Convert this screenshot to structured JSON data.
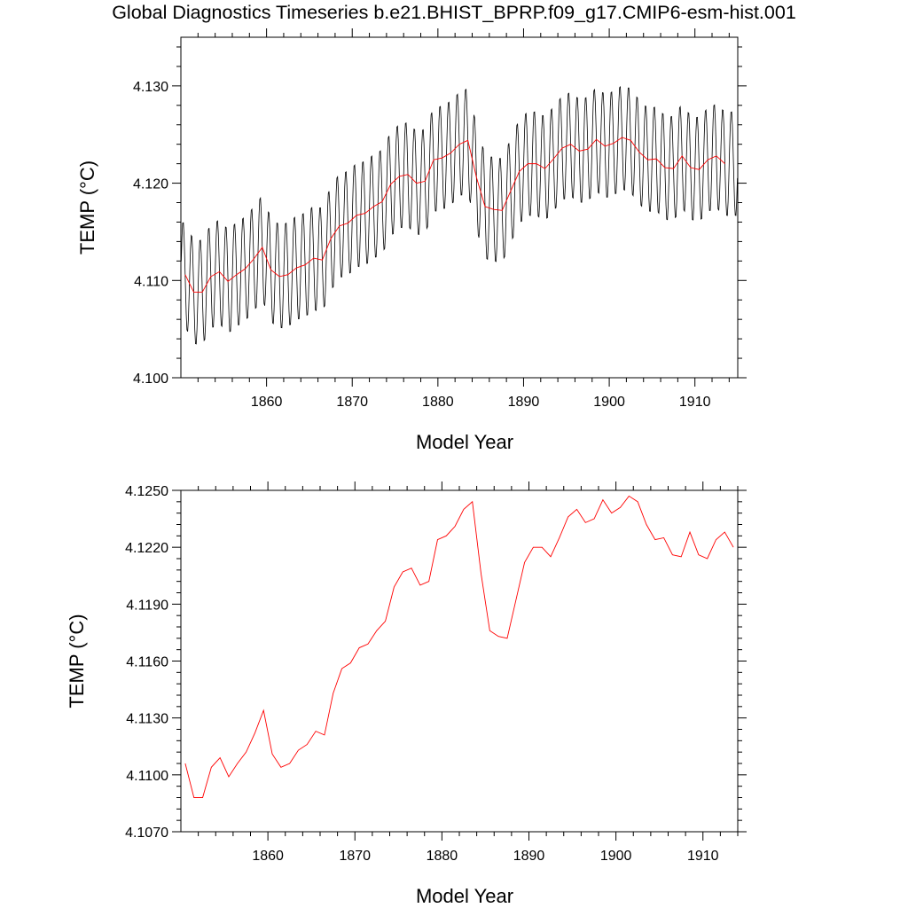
{
  "title": "Global Diagnostics Timeseries b.e21.BHIST_BPRP.f09_g17.CMIP6-esm-hist.001",
  "colors": {
    "monthly": "#000000",
    "annual": "#ff0000"
  },
  "chart_data": [
    {
      "type": "line",
      "xlabel": "Model Year",
      "ylabel": "TEMP (°C)",
      "xlim": [
        1850,
        1915
      ],
      "ylim": [
        4.1,
        4.135
      ],
      "x_ticks": [
        1860,
        1870,
        1880,
        1890,
        1900,
        1910
      ],
      "y_ticks": [
        4.1,
        4.11,
        4.12,
        4.13
      ],
      "y_tick_labels": [
        "4.100",
        "4.110",
        "4.120",
        "4.130"
      ],
      "series": [
        {
          "kind": "monthly",
          "seasonal_amplitude": 0.0055,
          "x_start": 1850.04,
          "x_step": 0.0833333
        },
        {
          "kind": "annual",
          "x": [
            1850.5,
            1851.5,
            1852.5,
            1853.5,
            1854.5,
            1855.5,
            1856.5,
            1857.5,
            1858.5,
            1859.5,
            1860.5,
            1861.5,
            1862.5,
            1863.5,
            1864.5,
            1865.5,
            1866.5,
            1867.5,
            1868.5,
            1869.5,
            1870.5,
            1871.5,
            1872.5,
            1873.5,
            1874.5,
            1875.5,
            1876.5,
            1877.5,
            1878.5,
            1879.5,
            1880.5,
            1881.5,
            1882.5,
            1883.5,
            1884.5,
            1885.5,
            1886.5,
            1887.5,
            1888.5,
            1889.5,
            1890.5,
            1891.5,
            1892.5,
            1893.5,
            1894.5,
            1895.5,
            1896.5,
            1897.5,
            1898.5,
            1899.5,
            1900.5,
            1901.5,
            1902.5,
            1903.5,
            1904.5,
            1905.5,
            1906.5,
            1907.5,
            1908.5,
            1909.5,
            1910.5,
            1911.5,
            1912.5,
            1913.5
          ],
          "values": [
            4.1106,
            4.1088,
            4.1088,
            4.1104,
            4.1109,
            4.1099,
            4.1106,
            4.1112,
            4.1122,
            4.1134,
            4.1111,
            4.1104,
            4.1106,
            4.1113,
            4.1116,
            4.1123,
            4.1121,
            4.1143,
            4.1156,
            4.1159,
            4.1167,
            4.1169,
            4.1176,
            4.1181,
            4.1199,
            4.1207,
            4.1209,
            4.12,
            4.1202,
            4.1224,
            4.1226,
            4.1231,
            4.124,
            4.1244,
            4.1206,
            4.1176,
            4.1173,
            4.1172,
            4.1192,
            4.1212,
            4.122,
            4.122,
            4.1215,
            4.1225,
            4.1236,
            4.124,
            4.1233,
            4.1235,
            4.1245,
            4.1238,
            4.1241,
            4.1247,
            4.1244,
            4.1232,
            4.1224,
            4.1225,
            4.1216,
            4.1215,
            4.1228,
            4.1216,
            4.1214,
            4.1224,
            4.1228,
            4.122
          ]
        }
      ]
    },
    {
      "type": "line",
      "xlabel": "Model Year",
      "ylabel": "TEMP (°C)",
      "xlim": [
        1850,
        1914
      ],
      "ylim": [
        4.107,
        4.125
      ],
      "x_ticks": [
        1860,
        1870,
        1880,
        1890,
        1900,
        1910
      ],
      "y_ticks": [
        4.107,
        4.11,
        4.113,
        4.116,
        4.119,
        4.122,
        4.125
      ],
      "y_tick_labels": [
        "4.1070",
        "4.1100",
        "4.1130",
        "4.1160",
        "4.1190",
        "4.1220",
        "4.1250"
      ],
      "series": [
        {
          "kind": "annual",
          "ref": 0
        }
      ]
    }
  ]
}
